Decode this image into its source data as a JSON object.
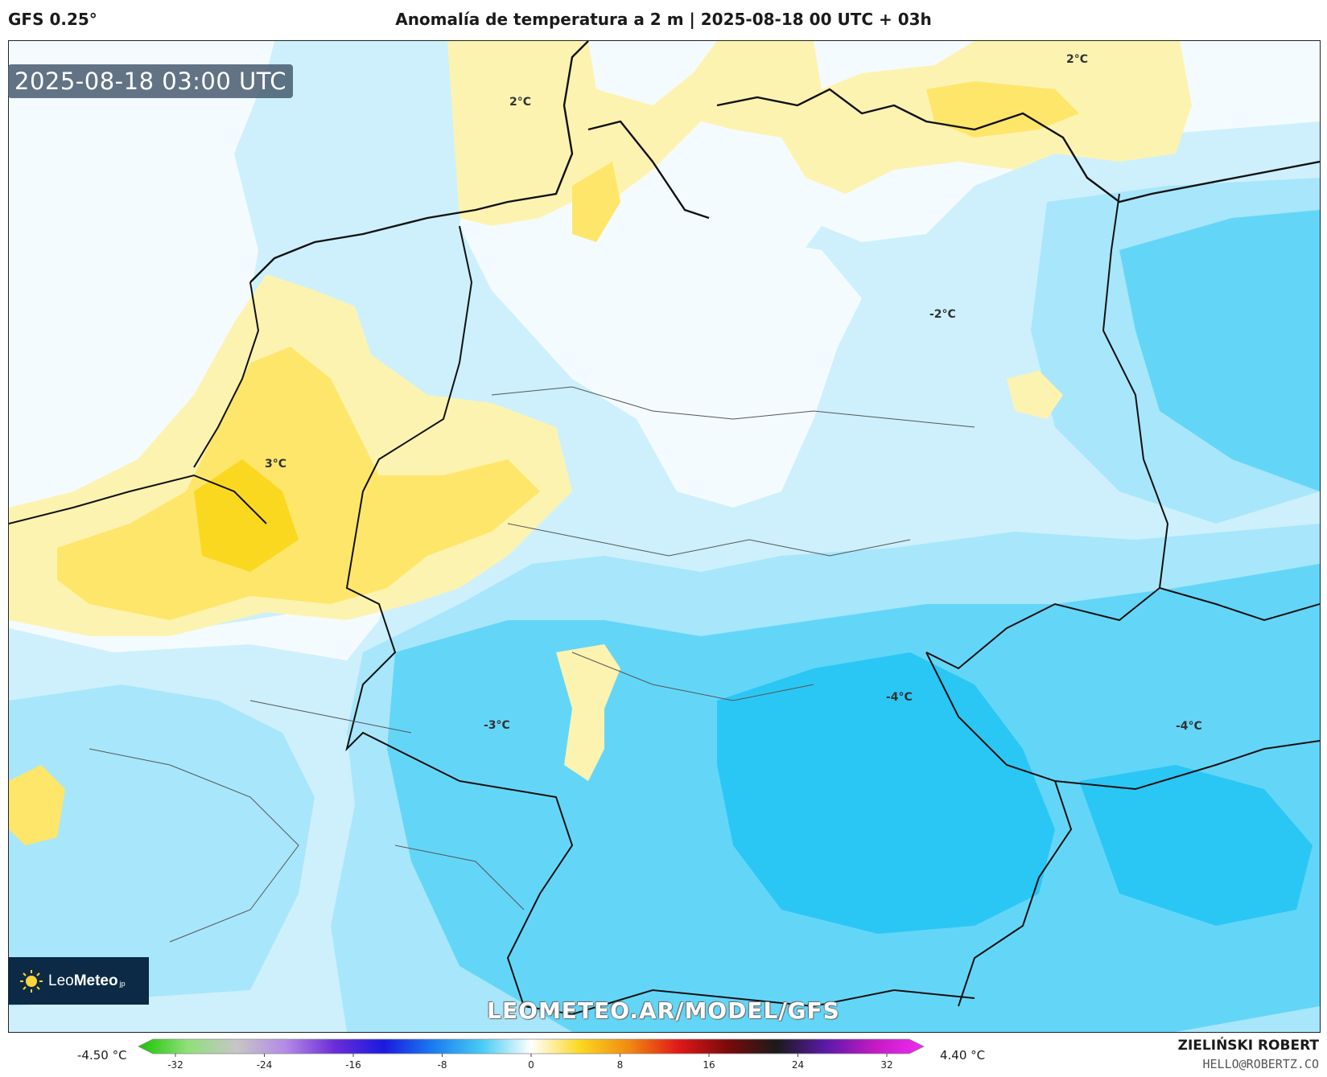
{
  "header": {
    "model": "GFS 0.25°",
    "title": "Anomalía de temperatura a 2 m | 2025-08-18 00 UTC + 03h"
  },
  "map": {
    "valid_time": "2025-08-18 03:00 UTC",
    "contour_labels": [
      "2°C",
      "2°C",
      "3°C",
      "-2°C",
      "-3°C",
      "-4°C",
      "-4°C"
    ],
    "watermark": "LEOMETEO.AR/MODEL/GFS",
    "colors": {
      "warm_light": "#fdf3b0",
      "warm_mid": "#fde66a",
      "warm_strong": "#fbd820",
      "neutral": "#f4fbff",
      "cold_light": "#cdf0fc",
      "cold_mid": "#a8e6fb",
      "cold_strong": "#63d6f8",
      "cold_deep": "#2bc7f4"
    }
  },
  "logo": {
    "brand_regular": "Leo",
    "brand_bold": "Meteo",
    "brand_suffix": "jp"
  },
  "legend": {
    "min_label": "-4.50 °C",
    "max_label": "4.40 °C",
    "ticks": [
      "-32",
      "-24",
      "-16",
      "-8",
      "0",
      "8",
      "16",
      "24",
      "32"
    ],
    "gradient_stops": [
      "#19c400",
      "#8fe07a",
      "#c6c6c6",
      "#b48ae6",
      "#6a2cd8",
      "#1a1ae0",
      "#1a7cf0",
      "#48ccf4",
      "#ffffff",
      "#fbd820",
      "#f08a10",
      "#e01818",
      "#7a0a0a",
      "#1a1a1a",
      "#5a1aa8",
      "#c41ac4",
      "#f22af2"
    ]
  },
  "credits": {
    "author": "ZIELIŃSKI ROBERT",
    "email": "HELLO@ROBERTZ.CO"
  }
}
